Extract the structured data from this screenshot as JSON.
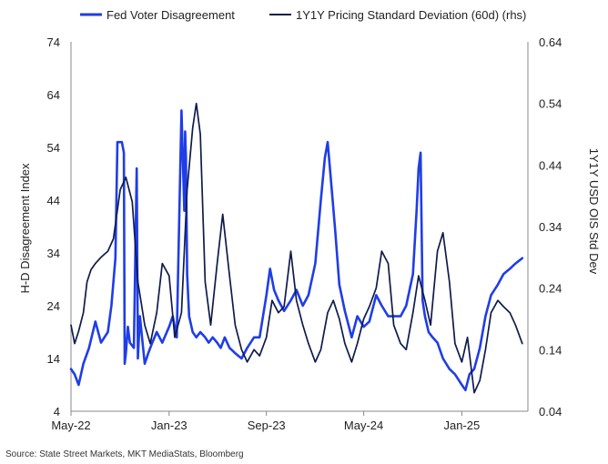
{
  "chart_data": {
    "type": "line",
    "x_tick_labels": [
      "May-22",
      "Jan-23",
      "Sep-23",
      "May-24",
      "Jan-25"
    ],
    "x_ticks": [
      "2022-05-01",
      "2023-01-01",
      "2023-09-01",
      "2024-05-01",
      "2025-01-01"
    ],
    "xlim": [
      "2022-05-01",
      "2025-06-15"
    ],
    "ylabel": "H-D Disagreement Index",
    "ylabel_right": "1Y1Y USD OIS Std Dev",
    "ylim": [
      4,
      74
    ],
    "yticks": [
      4,
      14,
      24,
      34,
      44,
      54,
      64,
      74
    ],
    "ylim_right": [
      0.04,
      0.64
    ],
    "yticks_right": [
      "0.04",
      "0.14",
      "0.24",
      "0.34",
      "0.44",
      "0.54",
      "0.64"
    ],
    "grid": false,
    "legend_position": "top",
    "series": [
      {
        "name": "Fed Voter Disagreement",
        "axis": "left",
        "color": "#1f3de8",
        "x": [
          "2022-05-01",
          "2022-05-10",
          "2022-05-20",
          "2022-06-01",
          "2022-06-15",
          "2022-07-01",
          "2022-07-15",
          "2022-08-01",
          "2022-08-10",
          "2022-08-20",
          "2022-08-25",
          "2022-09-05",
          "2022-09-10",
          "2022-09-12",
          "2022-09-15",
          "2022-09-20",
          "2022-09-25",
          "2022-10-05",
          "2022-10-12",
          "2022-10-15",
          "2022-10-20",
          "2022-11-01",
          "2022-11-10",
          "2022-11-20",
          "2022-12-01",
          "2022-12-15",
          "2023-01-01",
          "2023-01-10",
          "2023-01-20",
          "2023-02-01",
          "2023-02-08",
          "2023-02-10",
          "2023-02-12",
          "2023-02-15",
          "2023-02-20",
          "2023-03-01",
          "2023-03-10",
          "2023-03-20",
          "2023-04-01",
          "2023-04-10",
          "2023-04-20",
          "2023-05-01",
          "2023-05-10",
          "2023-05-20",
          "2023-06-01",
          "2023-06-15",
          "2023-07-01",
          "2023-07-15",
          "2023-08-01",
          "2023-08-15",
          "2023-09-01",
          "2023-09-10",
          "2023-09-20",
          "2023-10-01",
          "2023-10-15",
          "2023-11-01",
          "2023-11-15",
          "2023-12-01",
          "2023-12-15",
          "2024-01-01",
          "2024-01-15",
          "2024-01-25",
          "2024-02-01",
          "2024-02-10",
          "2024-02-20",
          "2024-03-01",
          "2024-03-15",
          "2024-04-01",
          "2024-04-15",
          "2024-05-01",
          "2024-05-15",
          "2024-06-01",
          "2024-06-15",
          "2024-07-01",
          "2024-07-15",
          "2024-08-01",
          "2024-08-15",
          "2024-09-01",
          "2024-09-10",
          "2024-09-15",
          "2024-09-20",
          "2024-09-25",
          "2024-10-01",
          "2024-10-10",
          "2024-10-20",
          "2024-11-01",
          "2024-11-15",
          "2024-12-01",
          "2024-12-15",
          "2025-01-01",
          "2025-01-10",
          "2025-01-20",
          "2025-02-01",
          "2025-02-15",
          "2025-03-01",
          "2025-03-15",
          "2025-04-01",
          "2025-04-15",
          "2025-05-01",
          "2025-05-15",
          "2025-06-01"
        ],
        "y": [
          12,
          11,
          9,
          13,
          16,
          21,
          17,
          19,
          24,
          33,
          55,
          55,
          53,
          13,
          15,
          20,
          17,
          16,
          50,
          14,
          22,
          13,
          15,
          17,
          19,
          17,
          20,
          22,
          18,
          61,
          42,
          57,
          52,
          30,
          22,
          19,
          18,
          19,
          18,
          17,
          18,
          17,
          16,
          18,
          16,
          15,
          14,
          16,
          18,
          18,
          26,
          31,
          27,
          25,
          23,
          25,
          27,
          24,
          26,
          32,
          44,
          52,
          55,
          47,
          38,
          28,
          23,
          18,
          22,
          20,
          21,
          26,
          24,
          22,
          22,
          22,
          24,
          30,
          42,
          50,
          53,
          25,
          22,
          19,
          18,
          17,
          14,
          12,
          11,
          9,
          8,
          11,
          12,
          16,
          22,
          26,
          28,
          30,
          31,
          32,
          33
        ]
      },
      {
        "name": "1Y1Y Pricing Standard Deviation (60d) (rhs)",
        "axis": "right",
        "color": "#0f1b4a",
        "x": [
          "2022-05-01",
          "2022-05-10",
          "2022-05-20",
          "2022-06-01",
          "2022-06-10",
          "2022-06-20",
          "2022-07-01",
          "2022-07-15",
          "2022-08-01",
          "2022-08-15",
          "2022-09-01",
          "2022-09-15",
          "2022-10-01",
          "2022-10-15",
          "2022-11-01",
          "2022-11-15",
          "2022-12-01",
          "2022-12-15",
          "2023-01-01",
          "2023-01-15",
          "2023-02-01",
          "2023-02-15",
          "2023-03-01",
          "2023-03-10",
          "2023-03-20",
          "2023-04-01",
          "2023-04-15",
          "2023-05-01",
          "2023-05-15",
          "2023-06-01",
          "2023-06-15",
          "2023-07-01",
          "2023-07-15",
          "2023-08-01",
          "2023-08-15",
          "2023-09-01",
          "2023-09-15",
          "2023-10-01",
          "2023-10-15",
          "2023-11-01",
          "2023-11-15",
          "2023-12-01",
          "2023-12-15",
          "2024-01-01",
          "2024-01-15",
          "2024-02-01",
          "2024-02-15",
          "2024-03-01",
          "2024-03-15",
          "2024-04-01",
          "2024-04-15",
          "2024-05-01",
          "2024-05-15",
          "2024-06-01",
          "2024-06-15",
          "2024-07-01",
          "2024-07-15",
          "2024-08-01",
          "2024-08-15",
          "2024-09-01",
          "2024-09-15",
          "2024-10-01",
          "2024-10-15",
          "2024-11-01",
          "2024-11-15",
          "2024-12-01",
          "2024-12-15",
          "2025-01-01",
          "2025-01-15",
          "2025-02-01",
          "2025-02-15",
          "2025-03-01",
          "2025-03-15",
          "2025-04-01",
          "2025-04-15",
          "2025-05-01",
          "2025-05-15",
          "2025-06-01"
        ],
        "y": [
          0.18,
          0.15,
          0.17,
          0.2,
          0.25,
          0.27,
          0.28,
          0.29,
          0.3,
          0.32,
          0.4,
          0.42,
          0.38,
          0.25,
          0.18,
          0.15,
          0.2,
          0.28,
          0.26,
          0.16,
          0.2,
          0.4,
          0.5,
          0.54,
          0.49,
          0.25,
          0.18,
          0.28,
          0.36,
          0.26,
          0.18,
          0.14,
          0.12,
          0.14,
          0.13,
          0.16,
          0.22,
          0.2,
          0.21,
          0.3,
          0.22,
          0.18,
          0.15,
          0.12,
          0.14,
          0.2,
          0.22,
          0.19,
          0.15,
          0.12,
          0.15,
          0.19,
          0.21,
          0.24,
          0.3,
          0.28,
          0.18,
          0.15,
          0.14,
          0.2,
          0.26,
          0.22,
          0.18,
          0.3,
          0.33,
          0.25,
          0.15,
          0.12,
          0.16,
          0.07,
          0.09,
          0.14,
          0.2,
          0.22,
          0.21,
          0.2,
          0.18,
          0.15
        ]
      }
    ]
  },
  "source_text": "Source: State Street Markets, MKT MediaStats, Bloomberg"
}
